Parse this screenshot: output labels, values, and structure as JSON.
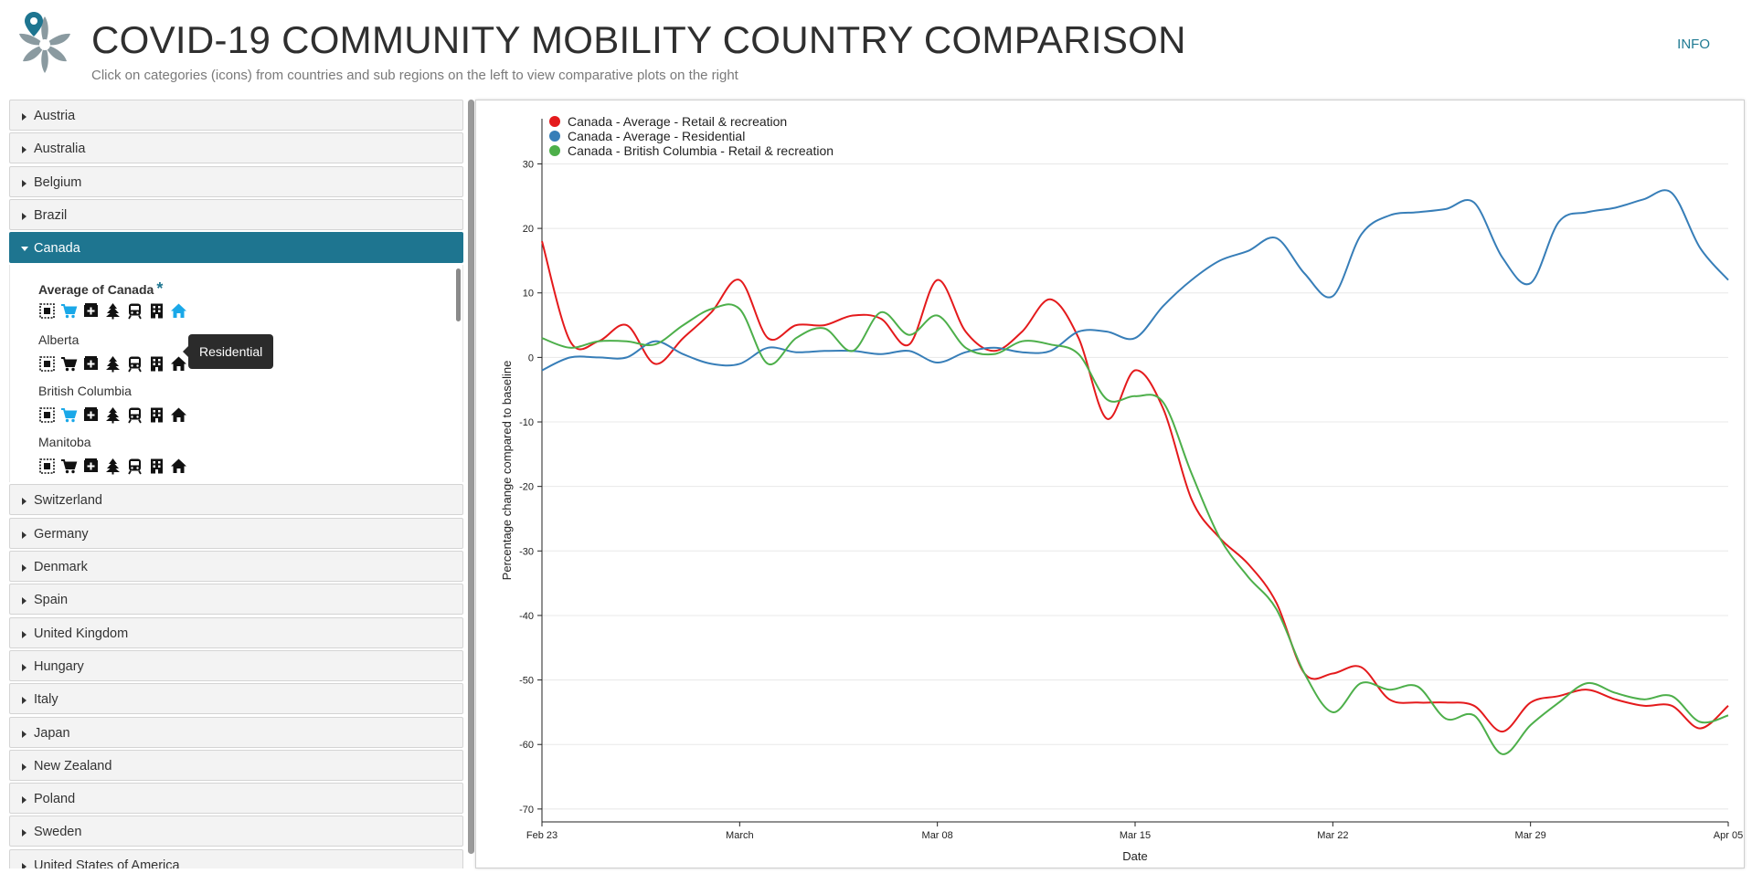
{
  "header": {
    "title": "COVID-19 COMMUNITY MOBILITY COUNTRY COMPARISON",
    "subtitle": "Click on categories (icons) from countries and sub regions on the left to view comparative plots on the right",
    "info_label": "INFO"
  },
  "sidebar": {
    "countries_before": [
      "Austria",
      "Australia",
      "Belgium",
      "Brazil"
    ],
    "open_country": "Canada",
    "regions": [
      {
        "name": "Average of Canada",
        "bold": true,
        "star": "*",
        "active": [
          "retail",
          "residential"
        ]
      },
      {
        "name": "Alberta",
        "bold": false,
        "star": "",
        "active": []
      },
      {
        "name": "British Columbia",
        "bold": false,
        "star": "",
        "active": [
          "retail"
        ]
      },
      {
        "name": "Manitoba",
        "bold": false,
        "star": "",
        "active": []
      }
    ],
    "category_icons": [
      "all-categories-icon",
      "shopping-cart-icon",
      "pharmacy-icon",
      "park-tree-icon",
      "transit-train-icon",
      "workplace-building-icon",
      "home-icon"
    ],
    "countries_after": [
      "Switzerland",
      "Germany",
      "Denmark",
      "Spain",
      "United Kingdom",
      "Hungary",
      "Italy",
      "Japan",
      "New Zealand",
      "Poland",
      "Sweden",
      "United States of America"
    ],
    "tooltip": "Residential",
    "active_color": "#1aa8e8",
    "inactive_color": "#111111"
  },
  "chart_data": {
    "type": "line",
    "xlabel": "Date",
    "ylabel": "Percentage change compared to baseline",
    "x_start": "2020-02-23",
    "x_end": "2020-04-05",
    "x_ticks": [
      {
        "date": "2020-02-23",
        "label": "Feb 23"
      },
      {
        "date": "2020-03-01",
        "label": "March"
      },
      {
        "date": "2020-03-08",
        "label": "Mar 08"
      },
      {
        "date": "2020-03-15",
        "label": "Mar 15"
      },
      {
        "date": "2020-03-22",
        "label": "Mar 22"
      },
      {
        "date": "2020-03-29",
        "label": "Mar 29"
      },
      {
        "date": "2020-04-05",
        "label": "Apr 05"
      }
    ],
    "ylim": [
      -72,
      37
    ],
    "y_ticks": [
      30,
      20,
      10,
      0,
      -10,
      -20,
      -30,
      -40,
      -50,
      -60,
      -70
    ],
    "grid": true,
    "legend": "top-left",
    "series": [
      {
        "name": "Canada - Average - Retail & recreation",
        "color": "#e41a1c",
        "x": [
          "2020-02-23",
          "2020-02-24",
          "2020-02-25",
          "2020-02-26",
          "2020-02-27",
          "2020-02-28",
          "2020-02-29",
          "2020-03-01",
          "2020-03-02",
          "2020-03-03",
          "2020-03-04",
          "2020-03-05",
          "2020-03-06",
          "2020-03-07",
          "2020-03-08",
          "2020-03-09",
          "2020-03-10",
          "2020-03-11",
          "2020-03-12",
          "2020-03-13",
          "2020-03-14",
          "2020-03-15",
          "2020-03-16",
          "2020-03-17",
          "2020-03-18",
          "2020-03-19",
          "2020-03-20",
          "2020-03-21",
          "2020-03-22",
          "2020-03-23",
          "2020-03-24",
          "2020-03-25",
          "2020-03-26",
          "2020-03-27",
          "2020-03-28",
          "2020-03-29",
          "2020-03-30",
          "2020-03-31",
          "2020-04-01",
          "2020-04-02",
          "2020-04-03",
          "2020-04-04",
          "2020-04-05"
        ],
        "values": [
          18,
          2.5,
          2.5,
          5,
          -1,
          3,
          7,
          12,
          3,
          5,
          5,
          6.5,
          6,
          2,
          12,
          4,
          1,
          4,
          9,
          3,
          -9.5,
          -2,
          -8,
          -22,
          -28,
          -32,
          -38,
          -49,
          -49,
          -48,
          -53,
          -53.5,
          -53.5,
          -54,
          -58,
          -53.5,
          -52.5,
          -51.5,
          -53,
          -54,
          -54,
          -57.5,
          -54
        ]
      },
      {
        "name": "Canada - Average - Residential",
        "color": "#377eb8",
        "x": [
          "2020-02-23",
          "2020-02-24",
          "2020-02-25",
          "2020-02-26",
          "2020-02-27",
          "2020-02-28",
          "2020-02-29",
          "2020-03-01",
          "2020-03-02",
          "2020-03-03",
          "2020-03-04",
          "2020-03-05",
          "2020-03-06",
          "2020-03-07",
          "2020-03-08",
          "2020-03-09",
          "2020-03-10",
          "2020-03-11",
          "2020-03-12",
          "2020-03-13",
          "2020-03-14",
          "2020-03-15",
          "2020-03-16",
          "2020-03-17",
          "2020-03-18",
          "2020-03-19",
          "2020-03-20",
          "2020-03-21",
          "2020-03-22",
          "2020-03-23",
          "2020-03-24",
          "2020-03-25",
          "2020-03-26",
          "2020-03-27",
          "2020-03-28",
          "2020-03-29",
          "2020-03-30",
          "2020-03-31",
          "2020-04-01",
          "2020-04-02",
          "2020-04-03",
          "2020-04-04",
          "2020-04-05"
        ],
        "values": [
          -2,
          0,
          0,
          0,
          2.5,
          0.5,
          -1,
          -1,
          1.5,
          0.8,
          1,
          1,
          0.5,
          1,
          -0.8,
          0.8,
          1.5,
          0.8,
          1,
          4,
          4,
          3,
          8,
          12,
          15,
          16.5,
          18.5,
          13,
          9.5,
          19,
          22,
          22.5,
          23,
          24,
          15.5,
          11.5,
          21,
          22.5,
          23.2,
          24.5,
          25.5,
          17,
          12
        ]
      },
      {
        "name": "Canada - British Columbia - Retail & recreation",
        "color": "#4daf4a",
        "x": [
          "2020-02-23",
          "2020-02-24",
          "2020-02-25",
          "2020-02-26",
          "2020-02-27",
          "2020-02-28",
          "2020-02-29",
          "2020-03-01",
          "2020-03-02",
          "2020-03-03",
          "2020-03-04",
          "2020-03-05",
          "2020-03-06",
          "2020-03-07",
          "2020-03-08",
          "2020-03-09",
          "2020-03-10",
          "2020-03-11",
          "2020-03-12",
          "2020-03-13",
          "2020-03-14",
          "2020-03-15",
          "2020-03-16",
          "2020-03-17",
          "2020-03-18",
          "2020-03-19",
          "2020-03-20",
          "2020-03-21",
          "2020-03-22",
          "2020-03-23",
          "2020-03-24",
          "2020-03-25",
          "2020-03-26",
          "2020-03-27",
          "2020-03-28",
          "2020-03-29",
          "2020-03-30",
          "2020-03-31",
          "2020-04-01",
          "2020-04-02",
          "2020-04-03",
          "2020-04-04",
          "2020-04-05"
        ],
        "values": [
          3,
          1.5,
          2.5,
          2.5,
          2,
          5,
          7.5,
          7.5,
          -1,
          3,
          4.5,
          1,
          7,
          3.5,
          6.5,
          1.5,
          0.5,
          2.5,
          2,
          0.5,
          -6.5,
          -6,
          -7,
          -18,
          -28,
          -34,
          -39,
          -49,
          -55,
          -50.5,
          -51.5,
          -51,
          -56,
          -55.5,
          -61.5,
          -57,
          -53.5,
          -50.5,
          -52,
          -53,
          -52.5,
          -56.5,
          -55.5
        ]
      }
    ]
  }
}
